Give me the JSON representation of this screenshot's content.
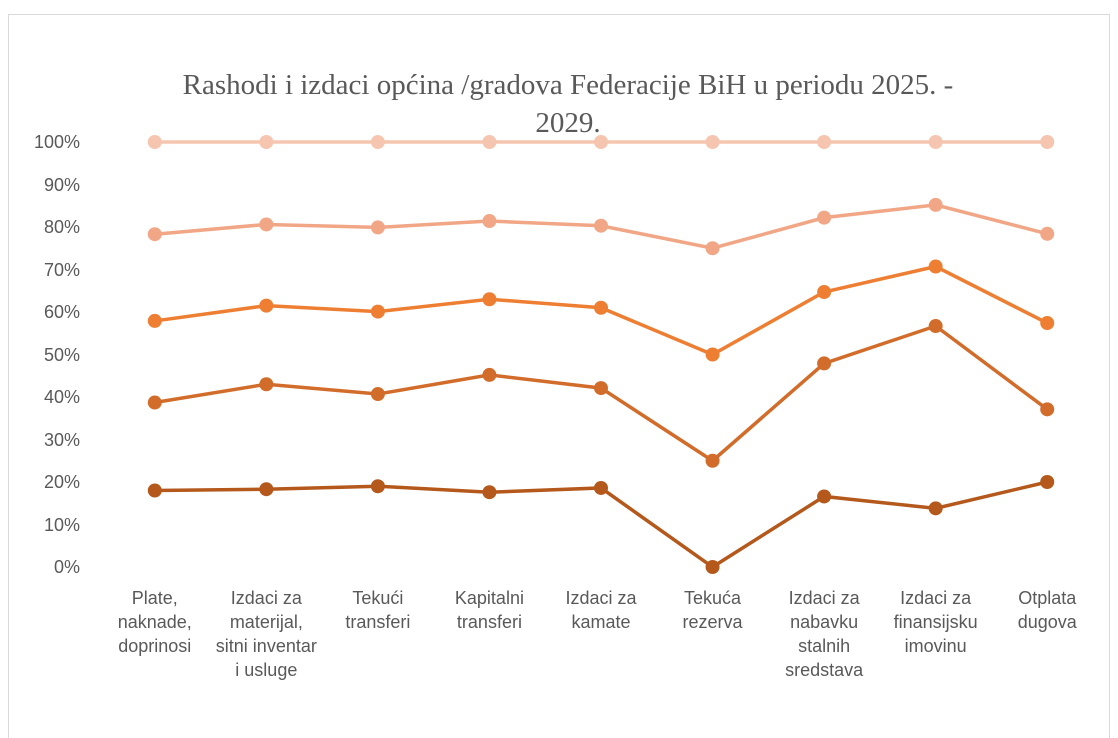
{
  "chart_data": {
    "type": "line",
    "stacked": "percent",
    "title": "Rashodi i izdaci općina /gradova Federacije BiH u periodu 2025. - 2029.",
    "categories": [
      "Plate, naknade, doprinosi",
      "Izdaci za materijal, sitni inventar i usluge",
      "Tekući transferi",
      "Kapitalni transferi",
      "Izdaci za kamate",
      "Tekuća rezerva",
      "Izdaci za nabavku stalnih sredstava",
      "Izdaci za finansijsku imovinu",
      "Otplata dugova"
    ],
    "series": [
      {
        "color": "#b4581c",
        "values": [
          18,
          18.3,
          19,
          17.6,
          18.6,
          0,
          16.6,
          13.8,
          20
        ]
      },
      {
        "color": "#d26c2a",
        "values": [
          20.7,
          24.7,
          21.7,
          27.6,
          23.5,
          25,
          31.3,
          42.9,
          17.1
        ]
      },
      {
        "color": "#ee7e32",
        "values": [
          19.2,
          18.5,
          19.4,
          17.8,
          18.9,
          25,
          16.8,
          14,
          20.3
        ]
      },
      {
        "color": "#f1a686",
        "values": [
          20.4,
          19.1,
          19.8,
          18.4,
          19.3,
          25,
          17.5,
          14.5,
          21
        ]
      },
      {
        "color": "#f6c5b0",
        "values": [
          21.7,
          19.4,
          20.1,
          18.6,
          19.7,
          25,
          17.8,
          14.8,
          21.6
        ]
      }
    ],
    "ylim": [
      0,
      100
    ],
    "yticks": [
      {
        "value": 0,
        "label": "0%"
      },
      {
        "value": 10,
        "label": "10%"
      },
      {
        "value": 20,
        "label": "20%"
      },
      {
        "value": 30,
        "label": "30%"
      },
      {
        "value": 40,
        "label": "40%"
      },
      {
        "value": 50,
        "label": "50%"
      },
      {
        "value": 60,
        "label": "60%"
      },
      {
        "value": 70,
        "label": "70%"
      },
      {
        "value": 80,
        "label": "80%"
      },
      {
        "value": 90,
        "label": "90%"
      },
      {
        "value": 100,
        "label": "100%"
      }
    ],
    "grid": false
  }
}
